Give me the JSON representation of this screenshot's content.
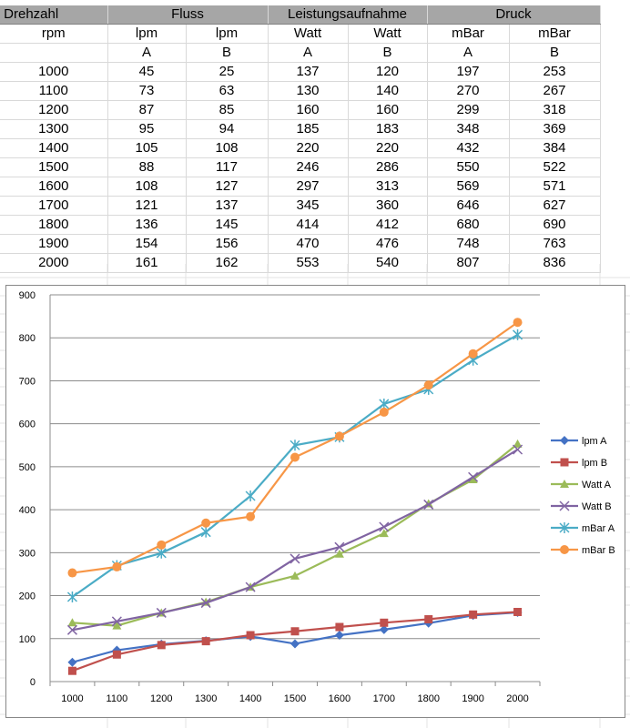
{
  "table": {
    "group_headers": [
      "Drehzahl",
      "Fluss",
      "Leistungsaufnahme",
      "Druck"
    ],
    "unit_row": [
      "rpm",
      "lpm",
      "lpm",
      "Watt",
      "Watt",
      "mBar",
      "mBar"
    ],
    "sub_row": [
      "",
      "A",
      "B",
      "A",
      "B",
      "A",
      "B"
    ],
    "rows": [
      [
        "1000",
        "45",
        "25",
        "137",
        "120",
        "197",
        "253"
      ],
      [
        "1100",
        "73",
        "63",
        "130",
        "140",
        "270",
        "267"
      ],
      [
        "1200",
        "87",
        "85",
        "160",
        "160",
        "299",
        "318"
      ],
      [
        "1300",
        "95",
        "94",
        "185",
        "183",
        "348",
        "369"
      ],
      [
        "1400",
        "105",
        "108",
        "220",
        "220",
        "432",
        "384"
      ],
      [
        "1500",
        "88",
        "117",
        "246",
        "286",
        "550",
        "522"
      ],
      [
        "1600",
        "108",
        "127",
        "297",
        "313",
        "569",
        "571"
      ],
      [
        "1700",
        "121",
        "137",
        "345",
        "360",
        "646",
        "627"
      ],
      [
        "1800",
        "136",
        "145",
        "414",
        "412",
        "680",
        "690"
      ],
      [
        "1900",
        "154",
        "156",
        "470",
        "476",
        "748",
        "763"
      ],
      [
        "2000",
        "161",
        "162",
        "553",
        "540",
        "807",
        "836"
      ]
    ]
  },
  "chart_data": {
    "type": "line",
    "categories": [
      "1000",
      "1100",
      "1200",
      "1300",
      "1400",
      "1500",
      "1600",
      "1700",
      "1800",
      "1900",
      "2000"
    ],
    "ylim": [
      0,
      900
    ],
    "yticks": [
      "0",
      "100",
      "200",
      "300",
      "400",
      "500",
      "600",
      "700",
      "800",
      "900"
    ],
    "grid": true,
    "legend_position": "right",
    "series": [
      {
        "name": "lpm A",
        "color": "#4472c4",
        "marker": "diamond",
        "values": [
          45,
          73,
          87,
          95,
          105,
          88,
          108,
          121,
          136,
          154,
          161
        ]
      },
      {
        "name": "lpm B",
        "color": "#c0504d",
        "marker": "square",
        "values": [
          25,
          63,
          85,
          94,
          108,
          117,
          127,
          137,
          145,
          156,
          162
        ]
      },
      {
        "name": "Watt A",
        "color": "#9bbb59",
        "marker": "triangle",
        "values": [
          137,
          130,
          160,
          185,
          220,
          246,
          297,
          345,
          414,
          470,
          553
        ]
      },
      {
        "name": "Watt B",
        "color": "#8064a2",
        "marker": "x",
        "values": [
          120,
          140,
          160,
          183,
          220,
          286,
          313,
          360,
          412,
          476,
          540
        ]
      },
      {
        "name": "mBar A",
        "color": "#4bacc6",
        "marker": "star",
        "values": [
          197,
          270,
          299,
          348,
          432,
          550,
          569,
          646,
          680,
          748,
          807
        ]
      },
      {
        "name": "mBar B",
        "color": "#f79646",
        "marker": "circle",
        "values": [
          253,
          267,
          318,
          369,
          384,
          522,
          571,
          627,
          690,
          763,
          836
        ]
      }
    ]
  }
}
